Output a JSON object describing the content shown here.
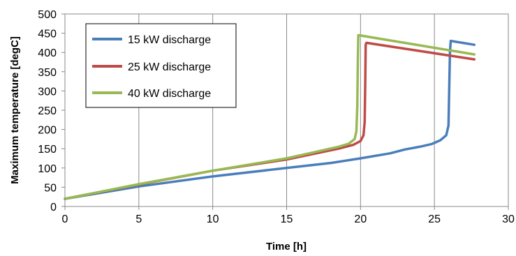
{
  "chart_data": {
    "type": "line",
    "title": "",
    "xlabel": "Time [h]",
    "ylabel": "Maximum temperature [degC]",
    "xlim": [
      0,
      30
    ],
    "ylim": [
      0,
      500
    ],
    "x_ticks": [
      0,
      5,
      10,
      15,
      20,
      25,
      30
    ],
    "y_ticks": [
      0,
      50,
      100,
      150,
      200,
      250,
      300,
      350,
      400,
      450,
      500
    ],
    "grid": "vertical",
    "legend_position": "top-left",
    "series": [
      {
        "name": "15 kW discharge",
        "color": "#4A7EBB",
        "x": [
          0,
          5,
          10,
          15,
          18,
          20,
          22,
          23,
          24,
          24.8,
          25.4,
          25.8,
          25.95,
          26.0,
          26.05,
          26.1,
          27.7
        ],
        "y": [
          20,
          52,
          78,
          100,
          113,
          125,
          138,
          148,
          155,
          162,
          172,
          185,
          210,
          300,
          400,
          430,
          420
        ]
      },
      {
        "name": "25 kW discharge",
        "color": "#BE4B48",
        "x": [
          0,
          5,
          10,
          15,
          17,
          18.5,
          19.5,
          20.0,
          20.2,
          20.28,
          20.32,
          20.35,
          20.4,
          27.7
        ],
        "y": [
          20,
          57,
          93,
          122,
          138,
          150,
          160,
          170,
          185,
          220,
          320,
          420,
          425,
          382
        ]
      },
      {
        "name": "40 kW discharge",
        "color": "#98B954",
        "x": [
          0,
          5,
          10,
          15,
          17,
          18.5,
          19.2,
          19.6,
          19.72,
          19.78,
          19.82,
          19.85,
          27.7
        ],
        "y": [
          20,
          58,
          93,
          125,
          142,
          155,
          163,
          175,
          195,
          260,
          380,
          445,
          395
        ]
      }
    ]
  }
}
